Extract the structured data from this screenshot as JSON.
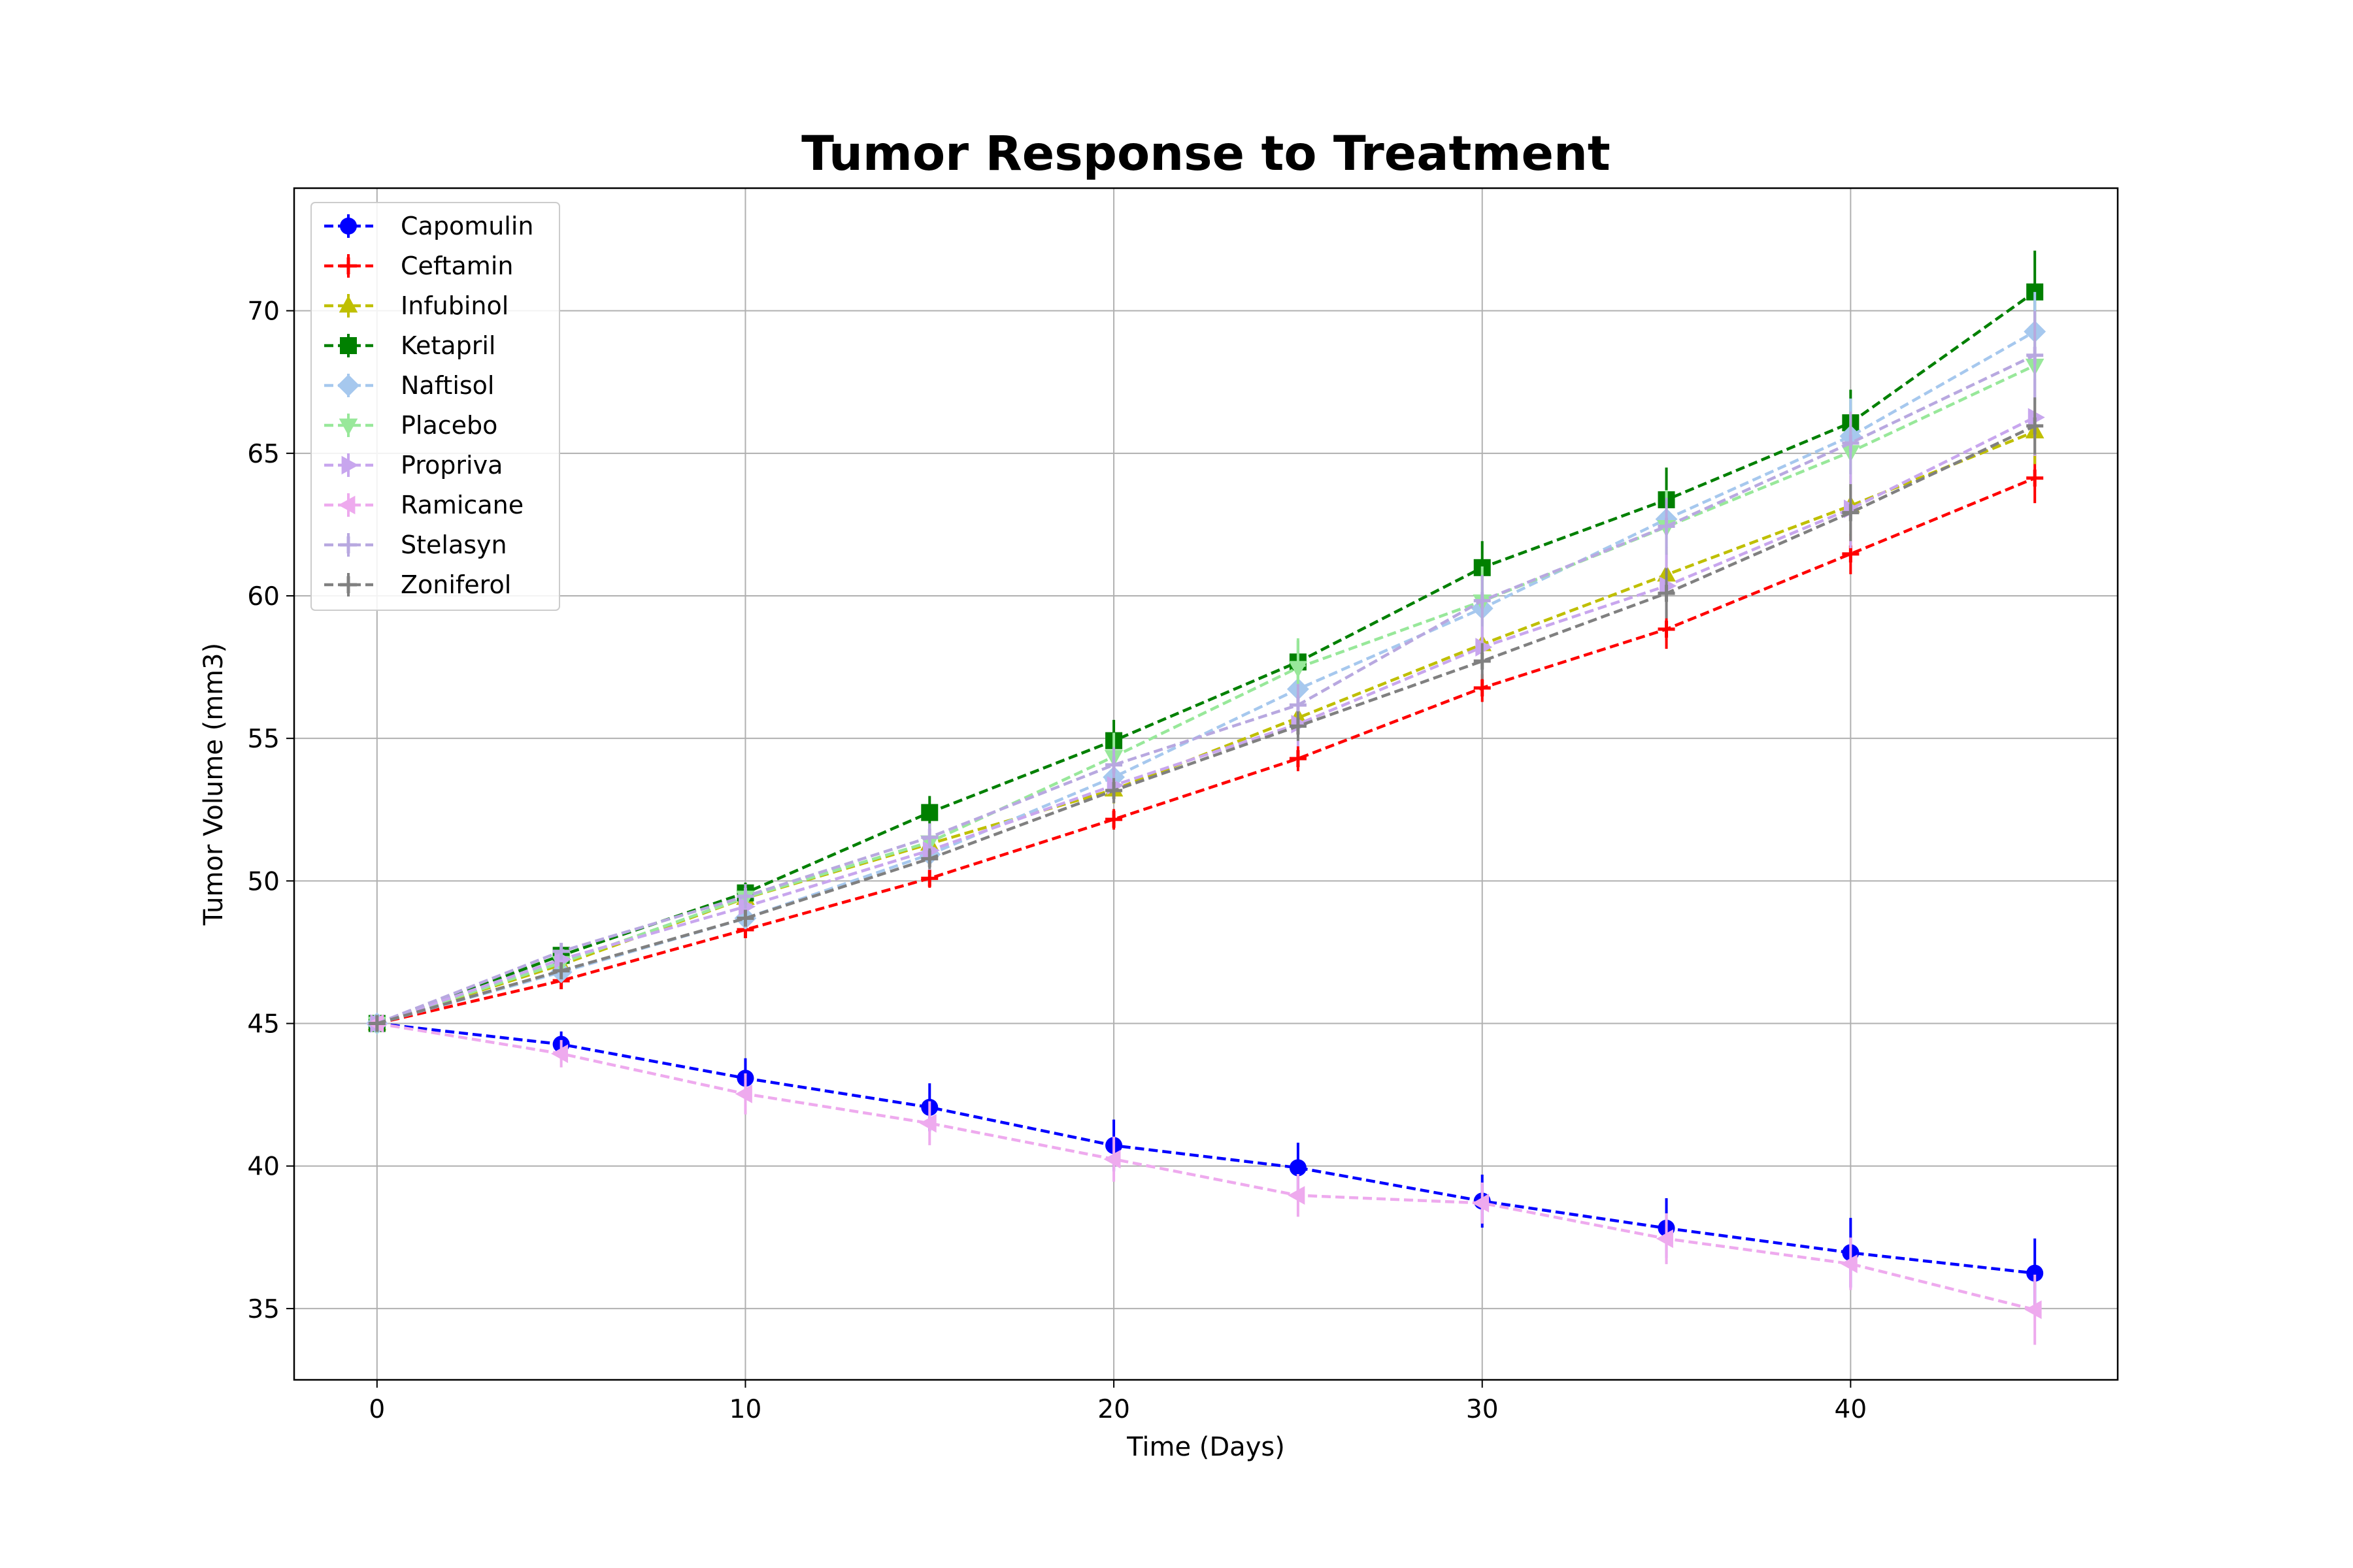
{
  "chart_data": {
    "type": "line",
    "title": "Tumor Response to Treatment",
    "xlabel": "Time (Days)",
    "ylabel": "Tumor Volume (mm3)",
    "xlim": [
      -2.25,
      47.25
    ],
    "ylim": [
      32.5,
      74.3
    ],
    "xticks": [
      0,
      10,
      20,
      30,
      40
    ],
    "yticks": [
      35,
      40,
      45,
      50,
      55,
      60,
      65,
      70
    ],
    "grid": true,
    "legend_position": "upper-left",
    "x": [
      0,
      5,
      10,
      15,
      20,
      25,
      30,
      35,
      40,
      45
    ],
    "series": [
      {
        "name": "Capomulin",
        "color": "#0000ff",
        "marker": "circle",
        "values": [
          45.0,
          44.27,
          43.08,
          42.06,
          40.72,
          39.94,
          38.77,
          37.82,
          36.96,
          36.24
        ],
        "errors": [
          0,
          0.45,
          0.7,
          0.84,
          0.91,
          0.88,
          0.93,
          1.05,
          1.22,
          1.22
        ]
      },
      {
        "name": "Ceftamin",
        "color": "#ff0000",
        "marker": "plus",
        "values": [
          45.0,
          46.5,
          48.29,
          50.09,
          52.16,
          54.29,
          56.77,
          58.83,
          61.47,
          64.13
        ],
        "errors": [
          0,
          0.16,
          0.24,
          0.33,
          0.36,
          0.44,
          0.49,
          0.69,
          0.71,
          0.88
        ]
      },
      {
        "name": "Infubinol",
        "color": "#bfbf00",
        "marker": "triangle-up",
        "values": [
          45.0,
          47.06,
          49.4,
          51.3,
          53.2,
          55.72,
          58.3,
          60.74,
          63.16,
          65.76
        ],
        "errors": [
          0,
          0.24,
          0.28,
          0.36,
          0.48,
          0.55,
          0.63,
          0.98,
          1.06,
          1.14
        ]
      },
      {
        "name": "Ketapril",
        "color": "#008000",
        "marker": "square",
        "values": [
          45.0,
          47.39,
          49.58,
          52.4,
          54.92,
          57.68,
          60.99,
          63.37,
          66.07,
          70.66
        ],
        "errors": [
          0,
          0.26,
          0.36,
          0.58,
          0.73,
          0.76,
          0.93,
          1.13,
          1.16,
          1.45
        ]
      },
      {
        "name": "Naftisol",
        "color": "#a6c8ee",
        "marker": "diamond",
        "values": [
          45.0,
          46.8,
          48.69,
          50.93,
          53.64,
          56.73,
          59.56,
          62.69,
          65.6,
          69.27
        ],
        "errors": [
          0,
          0.2,
          0.38,
          0.54,
          0.6,
          0.81,
          0.98,
          1.01,
          1.32,
          1.39
        ]
      },
      {
        "name": "Placebo",
        "color": "#98e89a",
        "marker": "triangle-down",
        "values": [
          45.0,
          47.13,
          49.42,
          51.36,
          54.36,
          57.48,
          59.81,
          62.42,
          65.05,
          68.08
        ],
        "errors": [
          0,
          0.22,
          0.4,
          0.61,
          0.84,
          1.03,
          1.22,
          1.29,
          1.37,
          1.35
        ]
      },
      {
        "name": "Propriva",
        "color": "#c8a6ee",
        "marker": "triangle-right",
        "values": [
          45.0,
          47.25,
          49.1,
          51.07,
          53.35,
          55.5,
          58.2,
          60.35,
          63.05,
          66.26
        ],
        "errors": [
          0,
          0.23,
          0.38,
          0.47,
          0.58,
          0.78,
          0.96,
          1.14,
          1.38,
          1.35
        ]
      },
      {
        "name": "Ramicane",
        "color": "#eeaaee",
        "marker": "triangle-left",
        "values": [
          45.0,
          43.94,
          42.53,
          41.5,
          40.24,
          38.97,
          38.7,
          37.45,
          36.57,
          34.96
        ],
        "errors": [
          0,
          0.48,
          0.72,
          0.77,
          0.79,
          0.75,
          0.72,
          0.89,
          0.92,
          1.23
        ]
      },
      {
        "name": "Stelasyn",
        "color": "#b8a8e0",
        "marker": "plus",
        "values": [
          45.0,
          47.53,
          49.46,
          51.53,
          54.07,
          56.17,
          59.83,
          62.44,
          65.36,
          68.44
        ],
        "errors": [
          0,
          0.24,
          0.43,
          0.49,
          0.62,
          0.74,
          0.9,
          1.0,
          1.1,
          1.56
        ]
      },
      {
        "name": "Zoniferol",
        "color": "#808080",
        "marker": "plus",
        "values": [
          45.0,
          46.85,
          48.69,
          50.78,
          53.17,
          55.43,
          57.71,
          60.09,
          62.92,
          65.96
        ],
        "errors": [
          0,
          0.19,
          0.26,
          0.36,
          0.44,
          0.52,
          0.63,
          0.88,
          1.0,
          1.0
        ]
      }
    ]
  }
}
